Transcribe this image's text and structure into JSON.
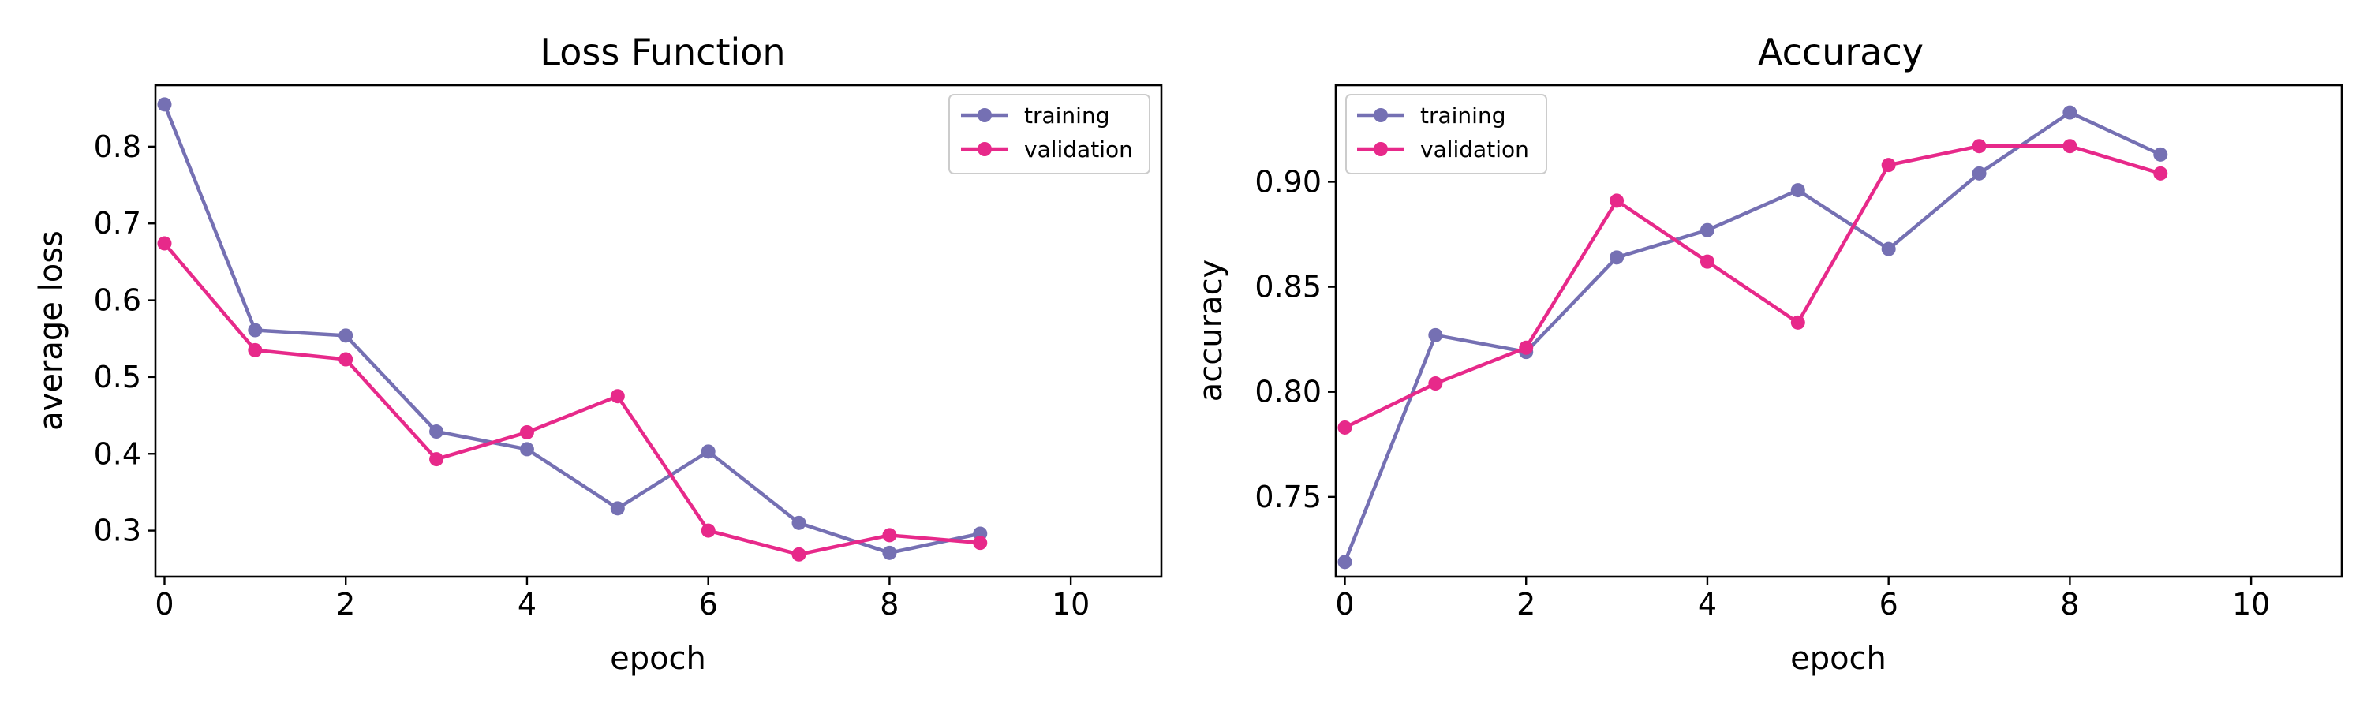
{
  "chart_data": [
    {
      "type": "line",
      "title": "Loss Function",
      "xlabel": "epoch",
      "ylabel": "average loss",
      "xlim": [
        -0.1,
        11
      ],
      "ylim": [
        0.24,
        0.88
      ],
      "xticks": [
        0,
        2,
        4,
        6,
        8,
        10
      ],
      "xtick_labels": [
        "0",
        "2",
        "4",
        "6",
        "8",
        "10"
      ],
      "yticks": [
        0.3,
        0.4,
        0.5,
        0.6,
        0.7,
        0.8
      ],
      "ytick_labels": [
        "0.3",
        "0.4",
        "0.5",
        "0.6",
        "0.7",
        "0.8"
      ],
      "legend_position": "top-right",
      "grid": false,
      "x": [
        0,
        1,
        2,
        3,
        4,
        5,
        6,
        7,
        8,
        9
      ],
      "series": [
        {
          "name": "training",
          "color": "#7570b3",
          "values": [
            0.855,
            0.561,
            0.554,
            0.429,
            0.406,
            0.329,
            0.403,
            0.31,
            0.271,
            0.296
          ]
        },
        {
          "name": "validation",
          "color": "#e7298a",
          "values": [
            0.674,
            0.535,
            0.523,
            0.393,
            0.428,
            0.475,
            0.3,
            0.269,
            0.294,
            0.284
          ]
        }
      ]
    },
    {
      "type": "line",
      "title": "Accuracy",
      "xlabel": "epoch",
      "ylabel": "accuracy",
      "xlim": [
        -0.1,
        11
      ],
      "ylim": [
        0.712,
        0.946
      ],
      "xticks": [
        0,
        2,
        4,
        6,
        8,
        10
      ],
      "xtick_labels": [
        "0",
        "2",
        "4",
        "6",
        "8",
        "10"
      ],
      "yticks": [
        0.75,
        0.8,
        0.85,
        0.9
      ],
      "ytick_labels": [
        "0.75",
        "0.80",
        "0.85",
        "0.90"
      ],
      "legend_position": "top-left",
      "grid": false,
      "x": [
        0,
        1,
        2,
        3,
        4,
        5,
        6,
        7,
        8,
        9
      ],
      "series": [
        {
          "name": "training",
          "color": "#7570b3",
          "values": [
            0.719,
            0.827,
            0.819,
            0.864,
            0.877,
            0.896,
            0.868,
            0.904,
            0.933,
            0.913
          ]
        },
        {
          "name": "validation",
          "color": "#e7298a",
          "values": [
            0.783,
            0.804,
            0.821,
            0.891,
            0.862,
            0.833,
            0.908,
            0.917,
            0.917,
            0.904
          ]
        }
      ]
    }
  ]
}
